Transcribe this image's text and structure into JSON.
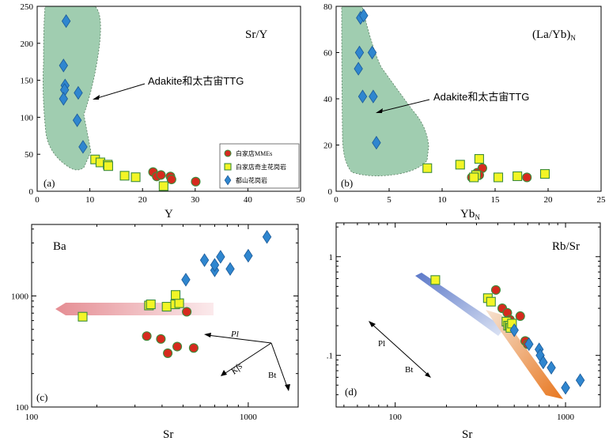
{
  "chart_data": [
    {
      "panel": "(a)",
      "type": "scatter",
      "title": "Sr/Y",
      "xlabel": "Y",
      "ylabel": "",
      "xlim": [
        0,
        50
      ],
      "ylim": [
        0,
        250
      ],
      "xticks": [
        0,
        10,
        20,
        30,
        40,
        50
      ],
      "yticks": [
        0,
        50,
        100,
        150,
        200,
        250
      ],
      "annotation": "Adakite和太古宙TTG",
      "field": "adakite-ttg",
      "legend_position": "right",
      "series": [
        {
          "name": "白家店MMEs",
          "marker": "circle",
          "color": "#d62a1e",
          "x": [
            22.0,
            22.7,
            23.5,
            25.3,
            25.5,
            30.1
          ],
          "y": [
            26,
            20,
            22,
            20,
            16,
            13
          ]
        },
        {
          "name": "白家店奇主花岗岩",
          "marker": "square",
          "color": "#f3f526",
          "x": [
            11.0,
            12.0,
            13.4,
            13.5,
            16.6,
            18.7,
            24.0
          ],
          "y": [
            43,
            39,
            36,
            34,
            21,
            19,
            7
          ]
        },
        {
          "name": "都山花岗岩",
          "marker": "diamond",
          "color": "#2f86cf",
          "x": [
            5.5,
            5.0,
            5.3,
            5.2,
            5.0,
            7.8,
            7.6,
            8.7
          ],
          "y": [
            230,
            170,
            143,
            137,
            125,
            133,
            96,
            60
          ]
        }
      ]
    },
    {
      "panel": "(b)",
      "type": "scatter",
      "title": "(La/Yb)",
      "title_sub": "N",
      "xlabel": "Yb",
      "xlabel_sub": "N",
      "xlim": [
        0,
        25
      ],
      "ylim": [
        0,
        80
      ],
      "xticks": [
        0,
        5,
        10,
        15,
        20,
        25
      ],
      "yticks": [
        0,
        20,
        40,
        60,
        80
      ],
      "annotation": "Adakite和太古宙TTG",
      "field": "adakite-ttg",
      "series": [
        {
          "name": "白家店MMEs",
          "marker": "circle",
          "color": "#d62a1e",
          "x": [
            12.8,
            13.3,
            13.8,
            13.5,
            15.3,
            18.0
          ],
          "y": [
            6,
            8,
            10,
            7,
            6,
            6
          ]
        },
        {
          "name": "白家店奇主花岗岩",
          "marker": "square",
          "color": "#f3f526",
          "x": [
            8.6,
            11.7,
            13.2,
            13.0,
            13.5,
            15.3,
            17.1,
            19.7
          ],
          "y": [
            10,
            11.5,
            7,
            6,
            14,
            6,
            6.5,
            7.5
          ]
        },
        {
          "name": "都山花岗岩",
          "marker": "diamond",
          "color": "#2f86cf",
          "x": [
            2.3,
            2.6,
            2.2,
            3.4,
            2.1,
            2.5,
            3.5,
            3.8
          ],
          "y": [
            75,
            76,
            60,
            60,
            53,
            41,
            41,
            21
          ]
        }
      ]
    },
    {
      "panel": "(c)",
      "type": "scatter",
      "title": "Ba",
      "xlabel": "Sr",
      "xscale": "log",
      "yscale": "log",
      "xlim": [
        100,
        1700
      ],
      "ylim": [
        100,
        4400
      ],
      "xtick_labels": [
        "100",
        "1000"
      ],
      "ytick_labels": [
        "100",
        "1000"
      ],
      "vectors": [
        "Pl",
        "Kfs",
        "Bt"
      ],
      "series": [
        {
          "name": "白家店MMEs",
          "marker": "circle",
          "color": "#d62a1e",
          "x": [
            520,
            340,
            395,
            425,
            470,
            560
          ],
          "y": [
            720,
            435,
            410,
            305,
            350,
            340
          ]
        },
        {
          "name": "白家店奇主花岗岩",
          "marker": "square",
          "color": "#f3f526",
          "x": [
            172,
            348,
            355,
            420,
            460,
            480,
            462
          ],
          "y": [
            650,
            820,
            840,
            800,
            840,
            860,
            1020
          ]
        },
        {
          "name": "都山花岗岩",
          "marker": "diamond",
          "color": "#2f86cf",
          "x": [
            515,
            628,
            700,
            700,
            745,
            825,
            1000,
            1220
          ],
          "y": [
            1400,
            2100,
            1700,
            1900,
            2250,
            1750,
            2300,
            3400
          ]
        }
      ]
    },
    {
      "panel": "(d)",
      "type": "scatter",
      "title": "Rb/Sr",
      "xlabel": "Sr",
      "xscale": "log",
      "yscale": "log",
      "xlim": [
        45,
        1600
      ],
      "ylim": [
        0.03,
        2.2
      ],
      "xtick_labels": [
        "100",
        "1000"
      ],
      "ytick_labels": [
        ".1",
        "1"
      ],
      "vectors": [
        "Pl",
        "Bt"
      ],
      "series": [
        {
          "name": "白家店MMEs",
          "marker": "circle",
          "color": "#d62a1e",
          "x": [
            390,
            425,
            455,
            472,
            542,
            580,
            600
          ],
          "y": [
            0.46,
            0.3,
            0.27,
            0.23,
            0.25,
            0.14,
            0.13
          ]
        },
        {
          "name": "白家店奇主花岗岩",
          "marker": "square",
          "color": "#f3f526",
          "x": [
            172,
            350,
            365,
            450,
            460,
            470,
            475,
            485
          ],
          "y": [
            0.58,
            0.38,
            0.35,
            0.22,
            0.2,
            0.2,
            0.19,
            0.21
          ]
        },
        {
          "name": "都山花岗岩",
          "marker": "diamond",
          "color": "#2f86cf",
          "x": [
            500,
            610,
            700,
            710,
            740,
            825,
            1000,
            1220
          ],
          "y": [
            0.18,
            0.13,
            0.115,
            0.1,
            0.085,
            0.075,
            0.047,
            0.056
          ]
        }
      ]
    }
  ]
}
